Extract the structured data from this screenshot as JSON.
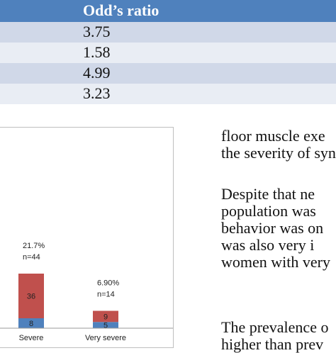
{
  "table": {
    "header_label": "Odd’s ratio",
    "rows": [
      "3.75",
      "1.58",
      "4.99",
      "3.23"
    ]
  },
  "chart_data": {
    "type": "bar",
    "stacked": true,
    "categories": [
      "Severe",
      "Very severe"
    ],
    "series": [
      {
        "name": "",
        "color": "#4f81bd",
        "values": [
          8,
          5
        ]
      },
      {
        "name": "",
        "color": "#c0504d",
        "values": [
          36,
          9
        ]
      }
    ],
    "annotations": [
      {
        "category": "Severe",
        "percent": "21.7%",
        "n": "n=44"
      },
      {
        "category": "Very severe",
        "percent": "6.90%",
        "n": "n=14"
      }
    ],
    "ylim": [
      0,
      90
    ],
    "grid": false
  },
  "text": {
    "para1": [
      "floor muscle exe",
      "the severity of syn"
    ],
    "para2": [
      "Despite that ne",
      "population was",
      "behavior was on",
      "was also very i",
      "women with very"
    ],
    "para3": [
      "The prevalence o",
      "higher than prev"
    ]
  }
}
